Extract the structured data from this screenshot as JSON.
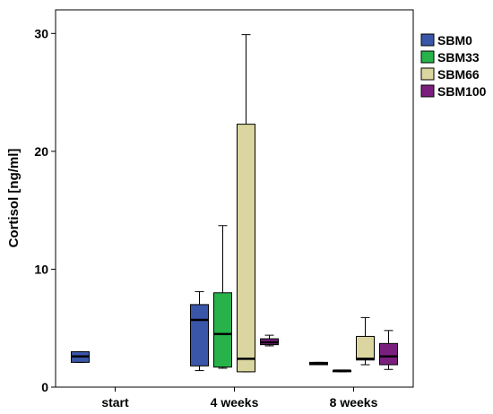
{
  "chart_data": {
    "type": "boxplot",
    "ylabel": "Cortisol [ng/ml]",
    "ylim": [
      0,
      32
    ],
    "yticks": [
      0,
      10,
      20,
      30
    ],
    "categories": [
      "start",
      "4 weeks",
      "8 weeks"
    ],
    "legend_position": "top-right",
    "series": [
      {
        "name": "SBM0",
        "color": "#3a56a8",
        "boxes": [
          {
            "category": "start",
            "min": 2.1,
            "q1": 2.1,
            "median": 2.6,
            "q3": 3.0,
            "max": 3.0
          },
          {
            "category": "4 weeks",
            "min": 1.4,
            "q1": 1.8,
            "median": 5.7,
            "q3": 7.0,
            "max": 8.1
          },
          {
            "category": "8 weeks",
            "min": 1.9,
            "q1": 1.9,
            "median": 2.0,
            "q3": 2.1,
            "max": 2.1
          }
        ]
      },
      {
        "name": "SBM33",
        "color": "#27b24a",
        "boxes": [
          {
            "category": "4 weeks",
            "min": 1.6,
            "q1": 1.7,
            "median": 4.5,
            "q3": 8.0,
            "max": 13.7
          },
          {
            "category": "8 weeks",
            "min": 1.3,
            "q1": 1.3,
            "median": 1.4,
            "q3": 1.4,
            "max": 1.4
          }
        ]
      },
      {
        "name": "SBM66",
        "color": "#dbd69f",
        "boxes": [
          {
            "category": "4 weeks",
            "min": 1.3,
            "q1": 1.3,
            "median": 2.4,
            "q3": 22.3,
            "max": 29.9
          },
          {
            "category": "8 weeks",
            "min": 1.9,
            "q1": 2.3,
            "median": 2.4,
            "q3": 4.3,
            "max": 5.9
          }
        ]
      },
      {
        "name": "SBM100",
        "color": "#7b1f7f",
        "boxes": [
          {
            "category": "4 weeks",
            "min": 3.5,
            "q1": 3.6,
            "median": 3.8,
            "q3": 4.1,
            "max": 4.4
          },
          {
            "category": "8 weeks",
            "min": 1.5,
            "q1": 1.9,
            "median": 2.6,
            "q3": 3.7,
            "max": 4.8
          }
        ]
      }
    ]
  }
}
